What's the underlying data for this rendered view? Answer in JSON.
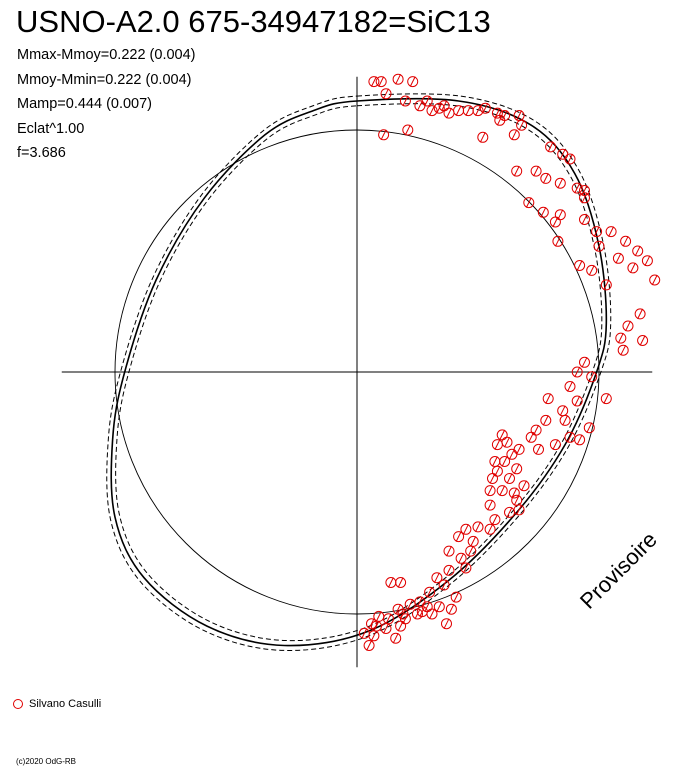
{
  "title": "USNO-A2.0 675-34947182=SiC13",
  "stats": [
    "Mmax-Mmoy=0.222 (0.004)",
    "Mmoy-Mmin=0.222 (0.004)",
    "Mamp=0.444 (0.007)",
    "Eclat^1.00",
    "f=3.686"
  ],
  "legend": {
    "label": "Silvano Casulli",
    "color": "#e00000"
  },
  "footer": {
    "copyright": "(c)2020 OdG-RB"
  },
  "watermark": "Provisoire",
  "chart_data": {
    "type": "scatter",
    "title": "USNO-A2.0 675-34947182=SiC13",
    "projection": "polar phase diagram",
    "axis_range": [
      -1.22,
      1.22
    ],
    "reference_circle_radius": 1.0,
    "fit_curve": {
      "mmax_mmoy": 0.222,
      "mmoy_mmin": 0.222,
      "style": "solid with dashed error band",
      "color": "#000000"
    },
    "series": [
      {
        "name": "Silvano Casulli",
        "marker": "open circle with slash",
        "color": "#e00000",
        "points": [
          [
            0.07,
            1.2
          ],
          [
            0.1,
            1.2
          ],
          [
            0.17,
            1.21
          ],
          [
            0.23,
            1.2
          ],
          [
            0.12,
            1.15
          ],
          [
            0.2,
            1.12
          ],
          [
            0.26,
            1.1
          ],
          [
            0.29,
            1.12
          ],
          [
            0.31,
            1.08
          ],
          [
            0.34,
            1.09
          ],
          [
            0.36,
            1.1
          ],
          [
            0.38,
            1.07
          ],
          [
            0.42,
            1.08
          ],
          [
            0.46,
            1.08
          ],
          [
            0.5,
            1.08
          ],
          [
            0.53,
            1.09
          ],
          [
            0.58,
            1.07
          ],
          [
            0.61,
            1.06
          ],
          [
            0.67,
            1.06
          ],
          [
            0.68,
            1.02
          ],
          [
            0.59,
            1.04
          ],
          [
            0.21,
            1.0
          ],
          [
            0.11,
            0.98
          ],
          [
            0.52,
            0.97
          ],
          [
            0.65,
            0.98
          ],
          [
            0.8,
            0.93
          ],
          [
            0.85,
            0.9
          ],
          [
            0.88,
            0.88
          ],
          [
            0.66,
            0.83
          ],
          [
            0.74,
            0.83
          ],
          [
            0.78,
            0.8
          ],
          [
            0.84,
            0.78
          ],
          [
            0.91,
            0.76
          ],
          [
            0.94,
            0.75
          ],
          [
            0.94,
            0.72
          ],
          [
            0.71,
            0.7
          ],
          [
            0.77,
            0.66
          ],
          [
            0.84,
            0.65
          ],
          [
            0.82,
            0.62
          ],
          [
            0.94,
            0.63
          ],
          [
            0.99,
            0.58
          ],
          [
            1.05,
            0.58
          ],
          [
            1.11,
            0.54
          ],
          [
            0.83,
            0.54
          ],
          [
            1.0,
            0.52
          ],
          [
            1.16,
            0.5
          ],
          [
            1.08,
            0.47
          ],
          [
            0.92,
            0.44
          ],
          [
            0.97,
            0.42
          ],
          [
            1.14,
            0.43
          ],
          [
            1.23,
            0.38
          ],
          [
            1.2,
            0.46
          ],
          [
            1.03,
            0.36
          ],
          [
            1.17,
            0.24
          ],
          [
            1.12,
            0.19
          ],
          [
            1.09,
            0.14
          ],
          [
            1.18,
            0.13
          ],
          [
            1.1,
            0.09
          ],
          [
            0.94,
            0.04
          ],
          [
            0.91,
            0.0
          ],
          [
            0.97,
            -0.02
          ],
          [
            0.88,
            -0.06
          ],
          [
            1.03,
            -0.11
          ],
          [
            0.79,
            -0.11
          ],
          [
            0.85,
            -0.16
          ],
          [
            0.91,
            -0.12
          ],
          [
            0.86,
            -0.2
          ],
          [
            0.78,
            -0.2
          ],
          [
            0.74,
            -0.24
          ],
          [
            0.96,
            -0.23
          ],
          [
            0.72,
            -0.27
          ],
          [
            0.88,
            -0.27
          ],
          [
            0.92,
            -0.28
          ],
          [
            0.82,
            -0.3
          ],
          [
            0.75,
            -0.32
          ],
          [
            0.67,
            -0.32
          ],
          [
            0.64,
            -0.34
          ],
          [
            0.58,
            -0.3
          ],
          [
            0.6,
            -0.26
          ],
          [
            0.62,
            -0.29
          ],
          [
            0.66,
            -0.4
          ],
          [
            0.61,
            -0.37
          ],
          [
            0.57,
            -0.37
          ],
          [
            0.58,
            -0.41
          ],
          [
            0.63,
            -0.44
          ],
          [
            0.56,
            -0.44
          ],
          [
            0.69,
            -0.47
          ],
          [
            0.65,
            -0.5
          ],
          [
            0.6,
            -0.49
          ],
          [
            0.55,
            -0.49
          ],
          [
            0.55,
            -0.55
          ],
          [
            0.66,
            -0.53
          ],
          [
            0.67,
            -0.57
          ],
          [
            0.63,
            -0.58
          ],
          [
            0.57,
            -0.61
          ],
          [
            0.55,
            -0.65
          ],
          [
            0.5,
            -0.64
          ],
          [
            0.45,
            -0.65
          ],
          [
            0.42,
            -0.68
          ],
          [
            0.48,
            -0.7
          ],
          [
            0.38,
            -0.74
          ],
          [
            0.47,
            -0.74
          ],
          [
            0.43,
            -0.77
          ],
          [
            0.45,
            -0.81
          ],
          [
            0.38,
            -0.82
          ],
          [
            0.33,
            -0.85
          ],
          [
            0.36,
            -0.88
          ],
          [
            0.3,
            -0.91
          ],
          [
            0.26,
            -0.95
          ],
          [
            0.22,
            -0.96
          ],
          [
            0.29,
            -0.97
          ],
          [
            0.27,
            -0.99
          ],
          [
            0.39,
            -0.98
          ],
          [
            0.41,
            -0.93
          ],
          [
            0.14,
            -0.87
          ],
          [
            0.18,
            -0.87
          ],
          [
            0.17,
            -0.98
          ],
          [
            0.09,
            -1.01
          ],
          [
            0.13,
            -1.02
          ],
          [
            0.19,
            -1.0
          ],
          [
            0.25,
            -1.0
          ],
          [
            0.34,
            -0.97
          ],
          [
            0.06,
            -1.04
          ],
          [
            0.08,
            -1.05
          ],
          [
            0.18,
            -1.05
          ],
          [
            0.2,
            -1.02
          ],
          [
            0.31,
            -1.0
          ],
          [
            0.37,
            -1.04
          ],
          [
            0.12,
            -1.06
          ],
          [
            0.07,
            -1.09
          ],
          [
            0.16,
            -1.1
          ],
          [
            0.03,
            -1.08
          ],
          [
            0.05,
            -1.13
          ]
        ]
      }
    ]
  }
}
